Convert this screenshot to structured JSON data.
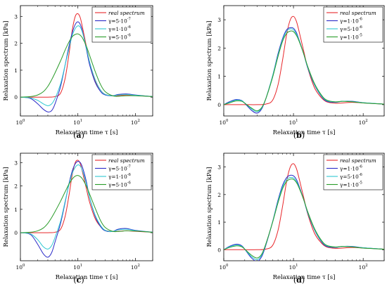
{
  "chart_data": [
    {
      "type": "line",
      "panel_label": "a",
      "xlabel": "Relaxation time τ [s]",
      "ylabel": "Relaxation spectrum  [kPa]",
      "xscale": "log",
      "xlim": [
        1,
        200
      ],
      "ylim": [
        -0.7,
        3.4
      ],
      "x_ticks": [
        "10^0",
        "10^1",
        "10^2"
      ],
      "y_ticks": [
        0,
        1,
        2,
        3
      ],
      "legend_position": "top-right",
      "grid": false,
      "series": [
        {
          "name": "real spectrum",
          "color": "#e8262a",
          "x": [
            1,
            2,
            3,
            4,
            5,
            6,
            7,
            8,
            9,
            10,
            11,
            12,
            14,
            16,
            20,
            25,
            30,
            40,
            50,
            70,
            100,
            200
          ],
          "y": [
            0,
            0,
            0,
            0.02,
            0.15,
            0.7,
            1.6,
            2.5,
            3.0,
            3.1,
            2.95,
            2.6,
            1.9,
            1.3,
            0.6,
            0.25,
            0.1,
            0.05,
            0.06,
            0.08,
            0.06,
            0.02
          ]
        },
        {
          "name": "γ=5·10^-7",
          "color": "#2b2bc8",
          "x": [
            1,
            1.5,
            2,
            2.5,
            3,
            3.5,
            4,
            5,
            6,
            7,
            8,
            9,
            10,
            11,
            12,
            14,
            16,
            20,
            25,
            30,
            40,
            50,
            70,
            100,
            200
          ],
          "y": [
            0,
            -0.05,
            -0.25,
            -0.45,
            -0.55,
            -0.5,
            -0.25,
            0.4,
            1.2,
            1.9,
            2.4,
            2.7,
            2.8,
            2.7,
            2.45,
            1.8,
            1.2,
            0.55,
            0.2,
            0.08,
            0.05,
            0.1,
            0.12,
            0.08,
            0.02
          ]
        },
        {
          "name": "γ=1·10^-6",
          "color": "#2ec8d2",
          "x": [
            1,
            1.5,
            2,
            2.5,
            3,
            3.5,
            4,
            5,
            6,
            7,
            8,
            9,
            10,
            11,
            12,
            14,
            16,
            20,
            25,
            30,
            40,
            50,
            70,
            100,
            200
          ],
          "y": [
            0,
            -0.03,
            -0.12,
            -0.25,
            -0.32,
            -0.25,
            -0.05,
            0.5,
            1.2,
            1.8,
            2.3,
            2.55,
            2.65,
            2.6,
            2.4,
            1.85,
            1.3,
            0.65,
            0.25,
            0.1,
            0.05,
            0.08,
            0.1,
            0.07,
            0.02
          ]
        },
        {
          "name": "γ=5·10^-6",
          "color": "#2a9c2a",
          "x": [
            1,
            1.5,
            2,
            2.5,
            3,
            3.5,
            4,
            5,
            6,
            7,
            8,
            9,
            10,
            11,
            12,
            14,
            16,
            20,
            25,
            30,
            40,
            50,
            70,
            100,
            200
          ],
          "y": [
            0,
            0.02,
            0.08,
            0.2,
            0.4,
            0.65,
            0.9,
            1.35,
            1.75,
            2.05,
            2.25,
            2.33,
            2.35,
            2.3,
            2.2,
            1.9,
            1.55,
            0.95,
            0.45,
            0.2,
            0.05,
            0.03,
            0.05,
            0.05,
            0.02
          ]
        }
      ]
    },
    {
      "type": "line",
      "panel_label": "b",
      "xlabel": "Relaxation time τ [s]",
      "ylabel": "Relaxation spectrum  [kPa]",
      "xscale": "log",
      "xlim": [
        1,
        200
      ],
      "ylim": [
        -0.4,
        3.5
      ],
      "x_ticks": [
        "10^0",
        "10^1",
        "10^2"
      ],
      "y_ticks": [
        0,
        1,
        2,
        3
      ],
      "legend_position": "top-right",
      "grid": false,
      "series": [
        {
          "name": "real spectrum",
          "color": "#e8262a",
          "x": [
            1,
            2,
            3,
            4,
            5,
            6,
            7,
            8,
            9,
            10,
            11,
            12,
            14,
            16,
            20,
            25,
            30,
            40,
            50,
            70,
            100,
            200
          ],
          "y": [
            0,
            0,
            0,
            0.02,
            0.15,
            0.7,
            1.6,
            2.5,
            3.0,
            3.12,
            2.95,
            2.6,
            1.9,
            1.3,
            0.6,
            0.25,
            0.1,
            0.05,
            0.06,
            0.08,
            0.06,
            0.02
          ]
        },
        {
          "name": "γ=1·10^-6",
          "color": "#2b2bc8",
          "x": [
            1,
            1.2,
            1.5,
            1.8,
            2,
            2.5,
            3,
            3.5,
            4,
            5,
            6,
            7,
            8,
            9,
            10,
            11,
            12,
            14,
            16,
            20,
            25,
            30,
            40,
            50,
            70,
            100,
            200
          ],
          "y": [
            0,
            0.1,
            0.18,
            0.15,
            0.05,
            -0.2,
            -0.3,
            -0.15,
            0.2,
            1.0,
            1.8,
            2.35,
            2.65,
            2.72,
            2.7,
            2.55,
            2.3,
            1.8,
            1.3,
            0.7,
            0.3,
            0.12,
            0.08,
            0.12,
            0.12,
            0.07,
            0.02
          ]
        },
        {
          "name": "γ=5·10^-6",
          "color": "#2ec8d2",
          "x": [
            1,
            1.2,
            1.5,
            1.8,
            2,
            2.5,
            3,
            3.5,
            4,
            5,
            6,
            7,
            8,
            9,
            10,
            11,
            12,
            14,
            16,
            20,
            25,
            30,
            40,
            50,
            70,
            100,
            200
          ],
          "y": [
            0,
            0.08,
            0.16,
            0.14,
            0.06,
            -0.15,
            -0.25,
            -0.12,
            0.2,
            1.0,
            1.75,
            2.3,
            2.6,
            2.68,
            2.65,
            2.5,
            2.28,
            1.8,
            1.32,
            0.72,
            0.32,
            0.14,
            0.09,
            0.12,
            0.11,
            0.07,
            0.02
          ]
        },
        {
          "name": "γ=1·10^-5",
          "color": "#2a9c2a",
          "x": [
            1,
            1.2,
            1.5,
            1.8,
            2,
            2.5,
            3,
            3.5,
            4,
            5,
            6,
            7,
            8,
            9,
            10,
            11,
            12,
            14,
            16,
            20,
            25,
            30,
            40,
            50,
            70,
            100,
            200
          ],
          "y": [
            0,
            0.06,
            0.13,
            0.12,
            0.05,
            -0.12,
            -0.22,
            -0.1,
            0.2,
            0.95,
            1.7,
            2.25,
            2.52,
            2.6,
            2.58,
            2.45,
            2.25,
            1.8,
            1.35,
            0.75,
            0.35,
            0.16,
            0.1,
            0.12,
            0.1,
            0.06,
            0.02
          ]
        }
      ]
    },
    {
      "type": "line",
      "panel_label": "c",
      "xlabel": "Relaxation time τ [s]",
      "ylabel": "Relaxation spectrum  [kPa]",
      "xscale": "log",
      "xlim": [
        1,
        200
      ],
      "ylim": [
        -1.2,
        3.4
      ],
      "x_ticks": [
        "10^0",
        "10^1",
        "10^2"
      ],
      "y_ticks": [
        0,
        1,
        2,
        3
      ],
      "legend_position": "top-right",
      "grid": false,
      "series": [
        {
          "name": "real spectrum",
          "color": "#e8262a",
          "x": [
            1,
            2,
            3,
            4,
            5,
            6,
            7,
            8,
            9,
            10,
            11,
            12,
            14,
            16,
            20,
            25,
            30,
            40,
            50,
            70,
            100,
            200
          ],
          "y": [
            0,
            0,
            0,
            0.02,
            0.15,
            0.7,
            1.6,
            2.5,
            3.0,
            3.1,
            2.95,
            2.6,
            1.9,
            1.3,
            0.6,
            0.25,
            0.1,
            0.05,
            0.06,
            0.08,
            0.06,
            0.02
          ]
        },
        {
          "name": "γ=5·10^-7",
          "color": "#2b2bc8",
          "x": [
            1,
            1.5,
            2,
            2.5,
            3,
            3.5,
            4,
            5,
            6,
            7,
            8,
            9,
            10,
            11,
            12,
            14,
            16,
            20,
            25,
            30,
            40,
            50,
            70,
            100,
            200
          ],
          "y": [
            0,
            -0.08,
            -0.5,
            -0.9,
            -1.05,
            -0.85,
            -0.4,
            0.4,
            1.3,
            2.1,
            2.65,
            2.95,
            3.05,
            3.0,
            2.8,
            2.2,
            1.5,
            0.7,
            0.25,
            0.08,
            0.05,
            0.15,
            0.18,
            0.1,
            0.02
          ]
        },
        {
          "name": "γ=1·10^-6",
          "color": "#2ec8d2",
          "x": [
            1,
            1.5,
            2,
            2.5,
            3,
            3.5,
            4,
            5,
            6,
            7,
            8,
            9,
            10,
            11,
            12,
            14,
            16,
            20,
            25,
            30,
            40,
            50,
            70,
            100,
            200
          ],
          "y": [
            0,
            -0.05,
            -0.3,
            -0.6,
            -0.7,
            -0.55,
            -0.2,
            0.5,
            1.35,
            2.05,
            2.55,
            2.8,
            2.9,
            2.85,
            2.65,
            2.1,
            1.5,
            0.75,
            0.3,
            0.1,
            0.05,
            0.12,
            0.15,
            0.09,
            0.02
          ]
        },
        {
          "name": "γ=5·10^-6",
          "color": "#2a9c2a",
          "x": [
            1,
            1.5,
            2,
            2.5,
            3,
            3.5,
            4,
            5,
            6,
            7,
            8,
            9,
            10,
            11,
            12,
            14,
            16,
            20,
            25,
            30,
            40,
            50,
            70,
            100,
            200
          ],
          "y": [
            0,
            0.02,
            0.08,
            0.2,
            0.4,
            0.65,
            0.9,
            1.35,
            1.75,
            2.08,
            2.3,
            2.42,
            2.45,
            2.4,
            2.3,
            2.0,
            1.65,
            1.05,
            0.5,
            0.22,
            0.06,
            0.05,
            0.08,
            0.07,
            0.02
          ]
        }
      ]
    },
    {
      "type": "line",
      "panel_label": "d",
      "xlabel": "Relaxation time τ [s]",
      "ylabel": "Relaxation spectrum  [kPa]",
      "xscale": "log",
      "xlim": [
        1,
        200
      ],
      "ylim": [
        -0.4,
        3.5
      ],
      "x_ticks": [
        "10^0",
        "10^1",
        "10^2"
      ],
      "y_ticks": [
        0,
        1,
        2,
        3
      ],
      "legend_position": "top-right",
      "grid": false,
      "series": [
        {
          "name": "real spectrum",
          "color": "#e8262a",
          "x": [
            1,
            2,
            3,
            4,
            5,
            6,
            7,
            8,
            9,
            10,
            11,
            12,
            14,
            16,
            20,
            25,
            30,
            40,
            50,
            70,
            100,
            200
          ],
          "y": [
            0,
            0,
            0,
            0.02,
            0.15,
            0.7,
            1.6,
            2.5,
            3.0,
            3.12,
            2.95,
            2.6,
            1.9,
            1.3,
            0.6,
            0.25,
            0.1,
            0.05,
            0.06,
            0.08,
            0.06,
            0.02
          ]
        },
        {
          "name": "γ=1·10^-6",
          "color": "#2b2bc8",
          "x": [
            1,
            1.2,
            1.5,
            1.8,
            2,
            2.5,
            3,
            3.5,
            4,
            5,
            6,
            7,
            8,
            9,
            10,
            11,
            12,
            14,
            16,
            20,
            25,
            30,
            40,
            50,
            70,
            100,
            200
          ],
          "y": [
            0,
            0.12,
            0.2,
            0.15,
            0.02,
            -0.3,
            -0.42,
            -0.25,
            0.15,
            1.0,
            1.8,
            2.35,
            2.62,
            2.7,
            2.68,
            2.55,
            2.32,
            1.82,
            1.33,
            0.72,
            0.3,
            0.12,
            0.08,
            0.12,
            0.12,
            0.07,
            0.02
          ]
        },
        {
          "name": "γ=5·10^-6",
          "color": "#2ec8d2",
          "x": [
            1,
            1.2,
            1.5,
            1.8,
            2,
            2.5,
            3,
            3.5,
            4,
            5,
            6,
            7,
            8,
            9,
            10,
            11,
            12,
            14,
            16,
            20,
            25,
            30,
            40,
            50,
            70,
            100,
            200
          ],
          "y": [
            0,
            0.1,
            0.17,
            0.13,
            0.02,
            -0.25,
            -0.36,
            -0.2,
            0.18,
            1.0,
            1.75,
            2.28,
            2.55,
            2.62,
            2.6,
            2.48,
            2.28,
            1.82,
            1.35,
            0.74,
            0.32,
            0.14,
            0.09,
            0.12,
            0.11,
            0.07,
            0.02
          ]
        },
        {
          "name": "γ=1·10^-5",
          "color": "#2a9c2a",
          "x": [
            1,
            1.2,
            1.5,
            1.8,
            2,
            2.5,
            3,
            3.5,
            4,
            5,
            6,
            7,
            8,
            9,
            10,
            11,
            12,
            14,
            16,
            20,
            25,
            30,
            40,
            50,
            70,
            100,
            200
          ],
          "y": [
            0,
            0.08,
            0.14,
            0.11,
            0.02,
            -0.2,
            -0.3,
            -0.16,
            0.2,
            0.98,
            1.7,
            2.22,
            2.48,
            2.56,
            2.55,
            2.44,
            2.25,
            1.82,
            1.38,
            0.77,
            0.35,
            0.16,
            0.1,
            0.12,
            0.1,
            0.06,
            0.02
          ]
        }
      ]
    }
  ]
}
